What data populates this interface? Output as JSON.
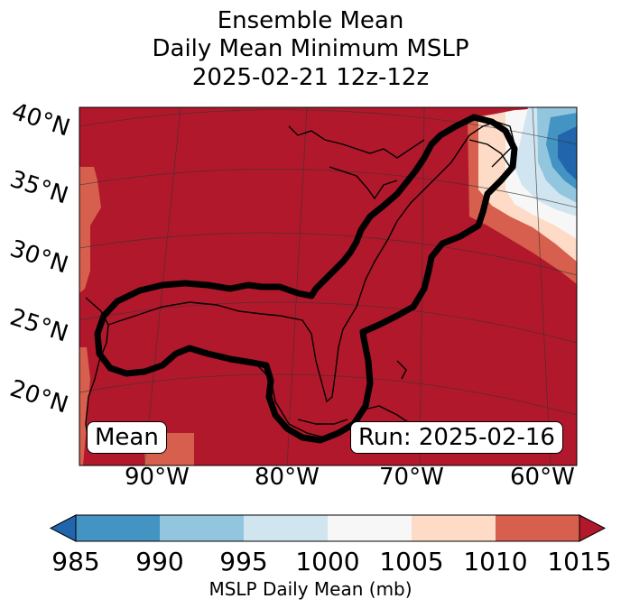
{
  "title": {
    "line1": "Ensemble Mean",
    "line2": "Daily Mean Minimum MSLP",
    "line3": "2025-02-21 12z-12z"
  },
  "map": {
    "lat_labels": [
      "40°N",
      "35°N",
      "30°N",
      "25°N",
      "20°N"
    ],
    "lon_labels": [
      "90°W",
      "80°W",
      "70°W",
      "60°W"
    ],
    "mean_box": "Mean",
    "run_box": "Run: 2025-02-16",
    "background_color": "#b2182b"
  },
  "colorbar": {
    "label": "MSLP Daily Mean (mb)",
    "ticks": [
      "985",
      "990",
      "995",
      "1000",
      "1005",
      "1010",
      "1015"
    ],
    "colors": [
      "#4393c3",
      "#92c5de",
      "#d1e5f0",
      "#f7f7f7",
      "#fddbc7",
      "#d6604d",
      "#b2182b"
    ],
    "under_color": "#2166ac",
    "over_color": "#b2182b"
  }
}
